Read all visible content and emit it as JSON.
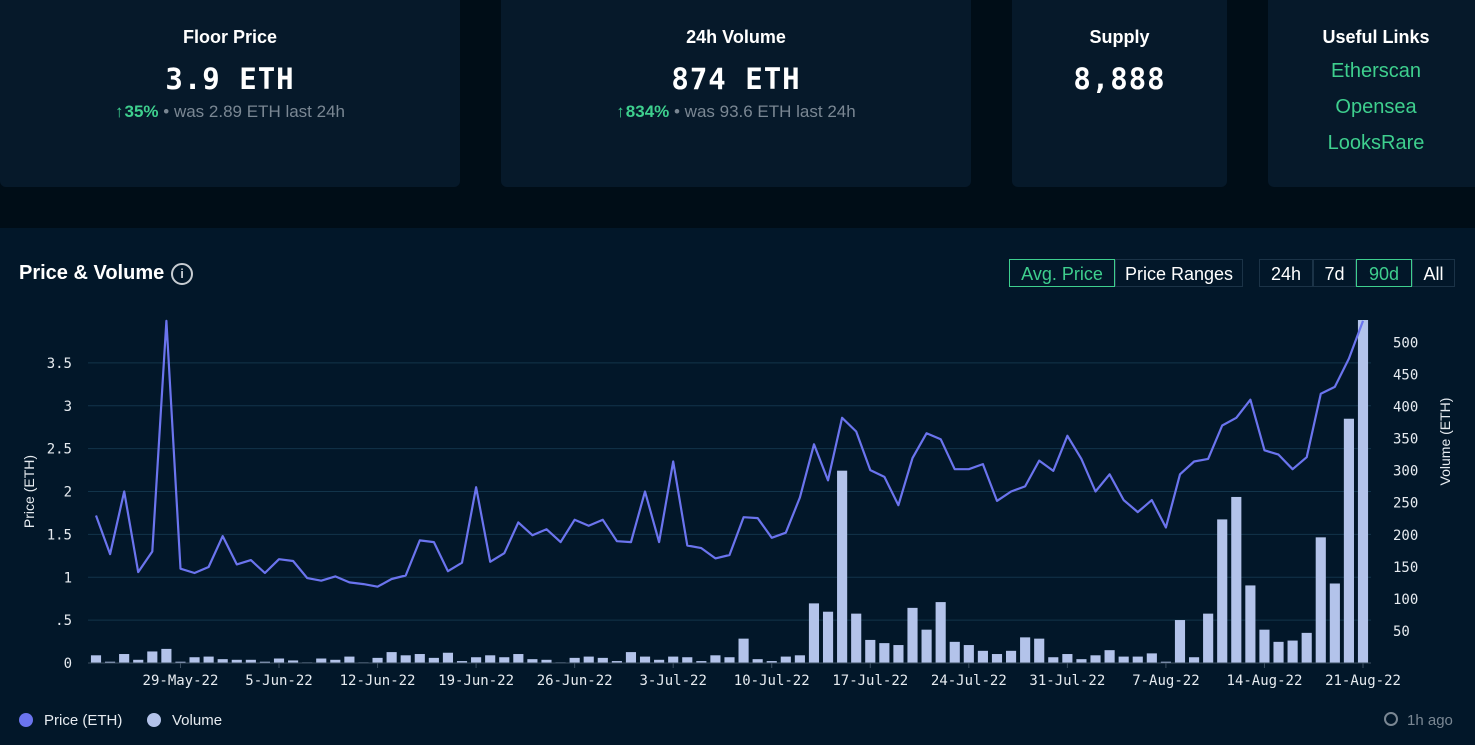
{
  "stats": {
    "floor": {
      "title": "Floor Price",
      "value": "3.9 ETH",
      "arrow": "↑",
      "pct": "35%",
      "sep": " • ",
      "was": "was 2.89 ETH last 24h"
    },
    "volume": {
      "title": "24h Volume",
      "value": "874 ETH",
      "arrow": "↑",
      "pct": "834%",
      "sep": " • ",
      "was": "was 93.6 ETH last 24h"
    },
    "supply": {
      "title": "Supply",
      "value": "8,888"
    },
    "links": {
      "title": "Useful Links",
      "items": [
        "Etherscan",
        "Opensea",
        "LooksRare"
      ]
    }
  },
  "panel": {
    "title": "Price & Volume",
    "info_icon": "i",
    "mode_buttons": [
      "Avg. Price",
      "Price Ranges"
    ],
    "range_buttons": [
      "24h",
      "7d",
      "90d",
      "All"
    ],
    "legend": [
      "Price (ETH)",
      "Volume"
    ],
    "updated": "1h ago"
  },
  "colors": {
    "accent": "#3ecf8e",
    "price_line": "#6b74ee",
    "volume_bar": "#b3c3ea",
    "background": "#021729"
  },
  "chart_data": {
    "type": "line+bar",
    "x_tick_labels": [
      "29-May-22",
      "5-Jun-22",
      "12-Jun-22",
      "19-Jun-22",
      "26-Jun-22",
      "3-Jul-22",
      "10-Jul-22",
      "17-Jul-22",
      "24-Jul-22",
      "31-Jul-22",
      "7-Aug-22",
      "14-Aug-22",
      "21-Aug-22"
    ],
    "x_start": "23-May-22",
    "x_end": "22-Aug-22",
    "ylabel": "Price (ETH)",
    "y2label": "Volume (ETH)",
    "y_ticks": [
      "0",
      ".5",
      "1",
      "1.5",
      "2",
      "2.5",
      "3",
      "3.5"
    ],
    "y2_ticks": [
      "50",
      "100",
      "150",
      "200",
      "250",
      "300",
      "350",
      "400",
      "450",
      "500"
    ],
    "ylim": [
      0,
      4.0
    ],
    "y2lim": [
      0,
      535
    ],
    "legend_position": "bottom-left",
    "series": [
      {
        "name": "Price (ETH)",
        "kind": "line",
        "values": [
          1.72,
          1.27,
          2.0,
          1.06,
          1.3,
          3.99,
          1.1,
          1.05,
          1.12,
          1.48,
          1.15,
          1.2,
          1.05,
          1.21,
          1.19,
          0.99,
          0.96,
          1.01,
          0.94,
          0.92,
          0.89,
          0.98,
          1.02,
          1.43,
          1.41,
          1.07,
          1.17,
          2.05,
          1.18,
          1.28,
          1.64,
          1.49,
          1.56,
          1.41,
          1.67,
          1.6,
          1.67,
          1.42,
          1.41,
          2.0,
          1.41,
          2.35,
          1.37,
          1.34,
          1.22,
          1.26,
          1.7,
          1.69,
          1.46,
          1.52,
          1.93,
          2.55,
          2.13,
          2.86,
          2.7,
          2.25,
          2.17,
          1.84,
          2.39,
          2.68,
          2.61,
          2.26,
          2.26,
          2.32,
          1.89,
          2.0,
          2.06,
          2.36,
          2.24,
          2.65,
          2.38,
          2.0,
          2.2,
          1.9,
          1.76,
          1.9,
          1.58,
          2.2,
          2.35,
          2.38,
          2.77,
          2.86,
          3.07,
          2.48,
          2.43,
          2.26,
          2.4,
          3.14,
          3.22,
          3.55,
          3.99
        ]
      },
      {
        "name": "Volume",
        "kind": "bar",
        "values": [
          12,
          2,
          14,
          5,
          18,
          22,
          2,
          9,
          10,
          6,
          5,
          5,
          2,
          7,
          4,
          1,
          7,
          5,
          10,
          1,
          8,
          17,
          12,
          14,
          8,
          16,
          3,
          9,
          12,
          9,
          14,
          6,
          5,
          1,
          8,
          10,
          8,
          3,
          17,
          10,
          5,
          10,
          9,
          3,
          12,
          9,
          38,
          6,
          3,
          10,
          12,
          93,
          80,
          300,
          77,
          36,
          31,
          28,
          86,
          52,
          95,
          33,
          28,
          19,
          14,
          19,
          40,
          38,
          9,
          14,
          6,
          12,
          20,
          10,
          10,
          15,
          2,
          67,
          9,
          77,
          224,
          259,
          121,
          52,
          33,
          35,
          47,
          196,
          124,
          381,
          535
        ]
      }
    ]
  }
}
